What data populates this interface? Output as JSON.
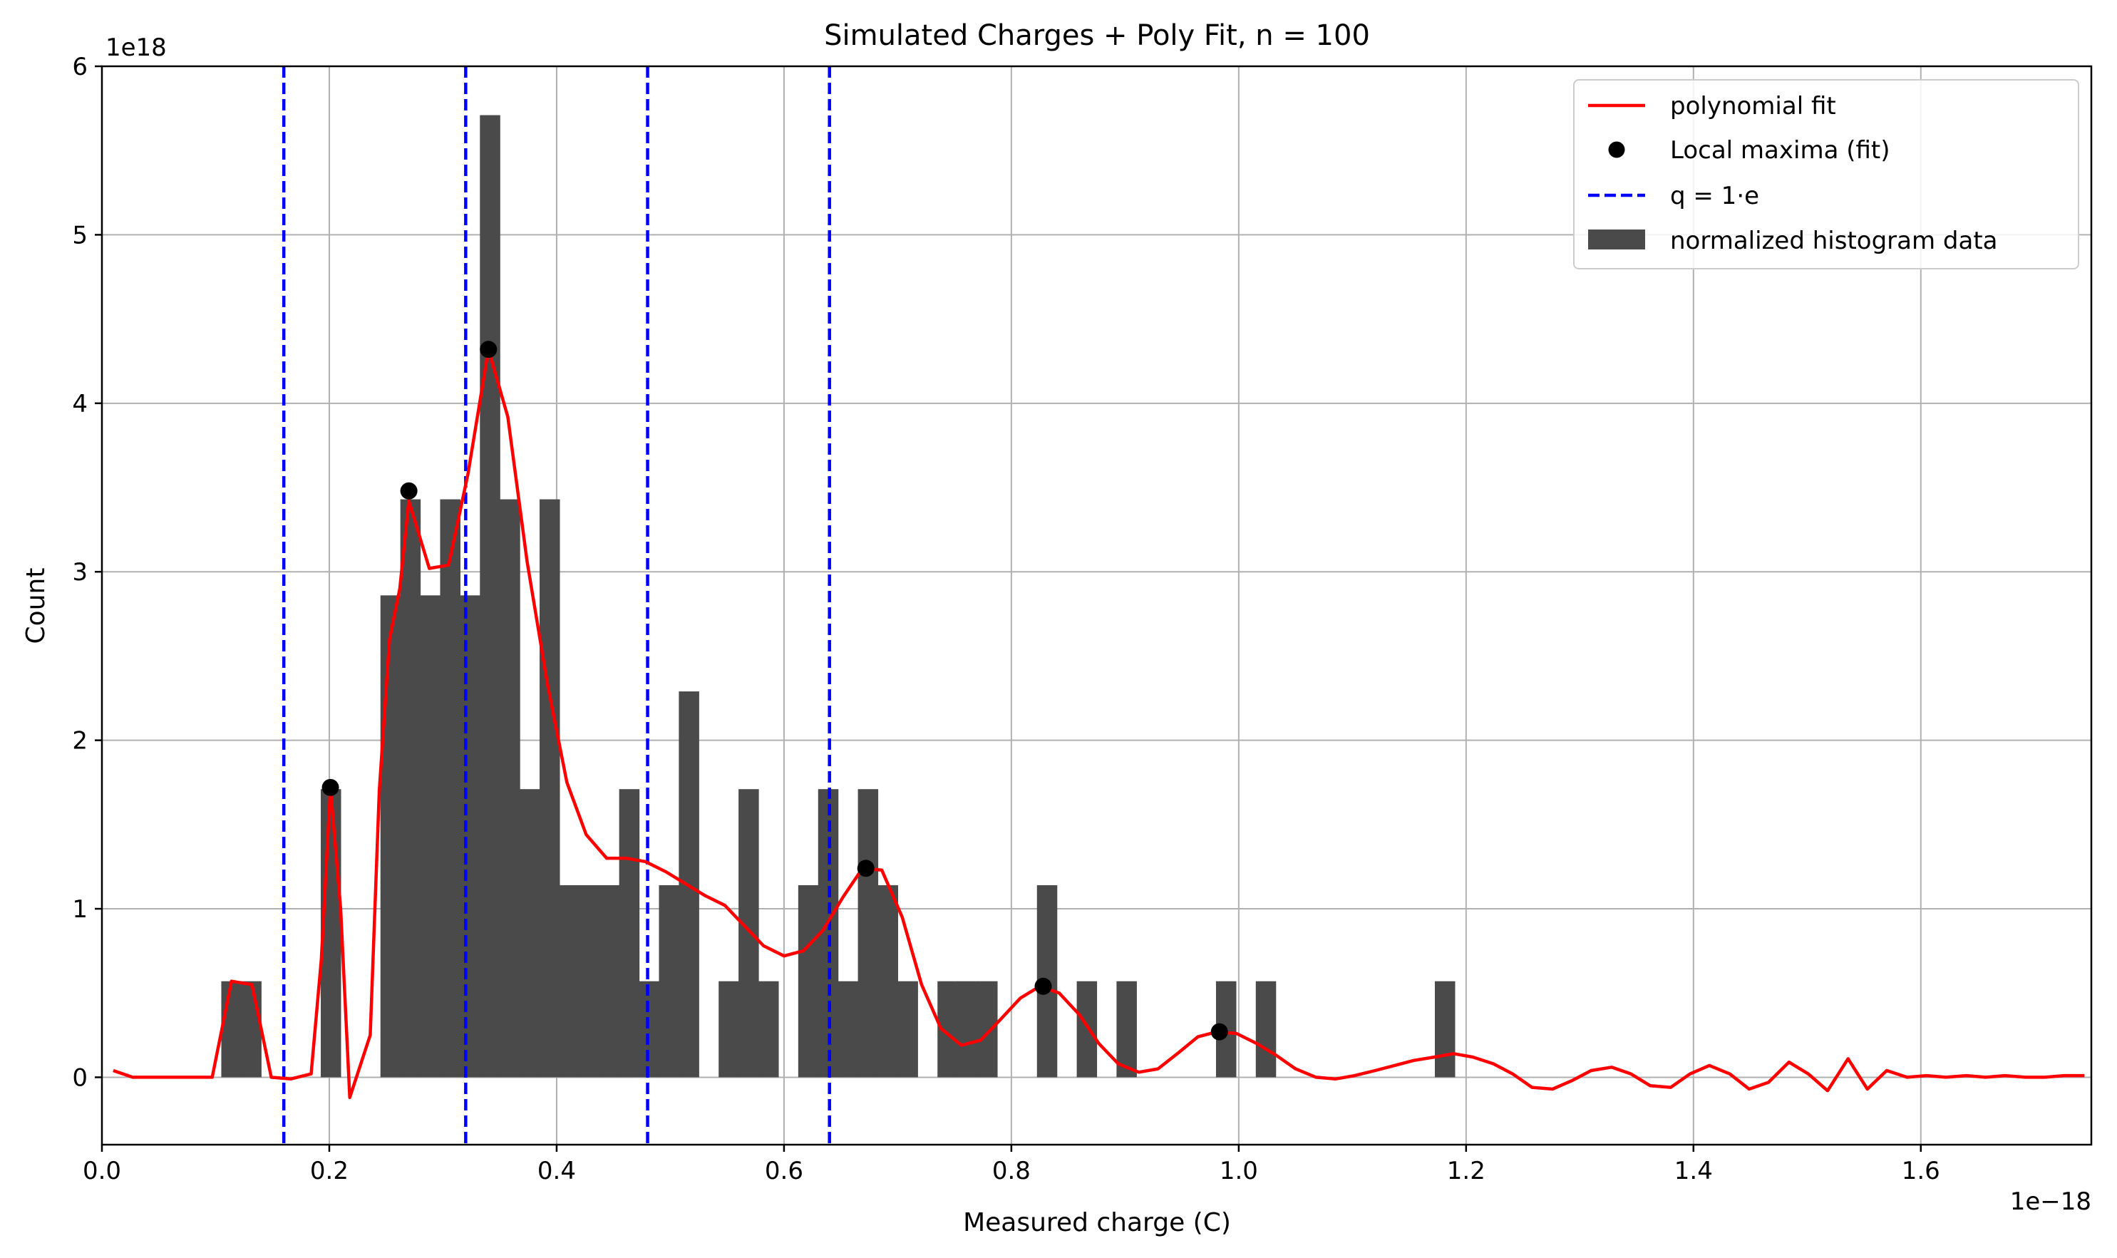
{
  "chart_data": {
    "type": "bar",
    "title": "Simulated Charges + Poly Fit, n = 100",
    "xlabel": "Measured charge (C)",
    "ylabel": "Count",
    "x_offset_text": "1e−18",
    "y_offset_text": "1e18",
    "xlim": [
      0.0,
      1.75
    ],
    "ylim": [
      -0.4,
      6.0
    ],
    "x_ticks": [
      0.0,
      0.2,
      0.4,
      0.6,
      0.8,
      1.0,
      1.2,
      1.4,
      1.6
    ],
    "x_tick_labels": [
      "0.0",
      "0.2",
      "0.4",
      "0.6",
      "0.8",
      "1.0",
      "1.2",
      "1.4",
      "1.6"
    ],
    "y_ticks": [
      0,
      1,
      2,
      3,
      4,
      5,
      6
    ],
    "y_tick_labels": [
      "0",
      "1",
      "2",
      "3",
      "4",
      "5",
      "6"
    ],
    "grid": true,
    "legend_position": "top-right",
    "legend": [
      "polynomial fit",
      "Local maxima (fit)",
      "q = 1·e",
      "normalized histogram data"
    ],
    "colors": {
      "histogram": "#4a4a4a",
      "fit": "#ff0000",
      "maxima": "#000000",
      "reference": "#0000ff"
    },
    "histogram": {
      "name": "normalized histogram data",
      "bin_width": 0.0175,
      "bins": [
        {
          "x": 0.105,
          "y": 0.57
        },
        {
          "x": 0.1225,
          "y": 0.57
        },
        {
          "x": 0.1925,
          "y": 1.71
        },
        {
          "x": 0.245,
          "y": 2.86
        },
        {
          "x": 0.2625,
          "y": 3.43
        },
        {
          "x": 0.28,
          "y": 2.86
        },
        {
          "x": 0.2975,
          "y": 3.43
        },
        {
          "x": 0.315,
          "y": 2.86
        },
        {
          "x": 0.3325,
          "y": 5.71
        },
        {
          "x": 0.35,
          "y": 3.43
        },
        {
          "x": 0.3675,
          "y": 1.71
        },
        {
          "x": 0.385,
          "y": 3.43
        },
        {
          "x": 0.4025,
          "y": 1.14
        },
        {
          "x": 0.42,
          "y": 1.14
        },
        {
          "x": 0.4375,
          "y": 1.14
        },
        {
          "x": 0.455,
          "y": 1.71
        },
        {
          "x": 0.4725,
          "y": 0.57
        },
        {
          "x": 0.49,
          "y": 1.14
        },
        {
          "x": 0.5075,
          "y": 2.29
        },
        {
          "x": 0.5425,
          "y": 0.57
        },
        {
          "x": 0.56,
          "y": 1.71
        },
        {
          "x": 0.5775,
          "y": 0.57
        },
        {
          "x": 0.6125,
          "y": 1.14
        },
        {
          "x": 0.63,
          "y": 1.71
        },
        {
          "x": 0.6475,
          "y": 0.57
        },
        {
          "x": 0.665,
          "y": 1.71
        },
        {
          "x": 0.6825,
          "y": 1.14
        },
        {
          "x": 0.7,
          "y": 0.57
        },
        {
          "x": 0.735,
          "y": 0.57
        },
        {
          "x": 0.7525,
          "y": 0.57
        },
        {
          "x": 0.77,
          "y": 0.57
        },
        {
          "x": 0.8225,
          "y": 1.14
        },
        {
          "x": 0.8575,
          "y": 0.57
        },
        {
          "x": 0.8925,
          "y": 0.57
        },
        {
          "x": 0.98,
          "y": 0.57
        },
        {
          "x": 1.015,
          "y": 0.57
        },
        {
          "x": 1.1725,
          "y": 0.57
        }
      ]
    },
    "fit": {
      "name": "polynomial fit",
      "x": [
        0.01,
        0.027,
        0.045,
        0.062,
        0.08,
        0.097,
        0.114,
        0.132,
        0.149,
        0.166,
        0.184,
        0.193,
        0.201,
        0.21,
        0.218,
        0.236,
        0.244,
        0.253,
        0.262,
        0.27,
        0.288,
        0.305,
        0.322,
        0.34,
        0.357,
        0.374,
        0.392,
        0.409,
        0.426,
        0.444,
        0.461,
        0.478,
        0.496,
        0.513,
        0.53,
        0.548,
        0.565,
        0.582,
        0.6,
        0.617,
        0.634,
        0.652,
        0.669,
        0.686,
        0.704,
        0.721,
        0.738,
        0.756,
        0.773,
        0.79,
        0.808,
        0.825,
        0.842,
        0.86,
        0.877,
        0.894,
        0.912,
        0.929,
        0.946,
        0.964,
        0.981,
        0.998,
        1.016,
        1.033,
        1.05,
        1.068,
        1.085,
        1.102,
        1.12,
        1.137,
        1.154,
        1.172,
        1.189,
        1.206,
        1.224,
        1.241,
        1.258,
        1.276,
        1.293,
        1.31,
        1.328,
        1.345,
        1.362,
        1.38,
        1.397,
        1.414,
        1.432,
        1.449,
        1.466,
        1.484,
        1.501,
        1.518,
        1.536,
        1.553,
        1.57,
        1.588,
        1.605,
        1.622,
        1.64,
        1.657,
        1.674,
        1.692,
        1.709,
        1.726,
        1.744
      ],
      "y": [
        0.04,
        0.0,
        0.0,
        0.0,
        0.0,
        0.0,
        0.57,
        0.55,
        0.0,
        -0.01,
        0.02,
        0.7,
        1.72,
        1.0,
        -0.12,
        0.25,
        1.7,
        2.6,
        2.9,
        3.42,
        3.02,
        3.04,
        3.58,
        4.32,
        3.92,
        3.06,
        2.33,
        1.75,
        1.44,
        1.3,
        1.3,
        1.28,
        1.22,
        1.15,
        1.08,
        1.02,
        0.9,
        0.78,
        0.72,
        0.75,
        0.87,
        1.07,
        1.24,
        1.23,
        0.95,
        0.55,
        0.29,
        0.19,
        0.22,
        0.34,
        0.47,
        0.54,
        0.5,
        0.37,
        0.2,
        0.08,
        0.03,
        0.05,
        0.14,
        0.24,
        0.27,
        0.26,
        0.2,
        0.13,
        0.05,
        0.0,
        -0.01,
        0.01,
        0.04,
        0.07,
        0.1,
        0.12,
        0.14,
        0.12,
        0.08,
        0.02,
        -0.06,
        -0.07,
        -0.02,
        0.04,
        0.06,
        0.02,
        -0.05,
        -0.06,
        0.02,
        0.07,
        0.02,
        -0.07,
        -0.03,
        0.09,
        0.02,
        -0.08,
        0.11,
        -0.07,
        0.04,
        0.0,
        0.01,
        0.0,
        0.01,
        0.0,
        0.01,
        0.0,
        0.0,
        0.01,
        0.01
      ]
    },
    "maxima": {
      "name": "Local maxima (fit)",
      "points": [
        {
          "x": 0.201,
          "y": 1.72
        },
        {
          "x": 0.27,
          "y": 3.48
        },
        {
          "x": 0.34,
          "y": 4.32
        },
        {
          "x": 0.672,
          "y": 1.24
        },
        {
          "x": 0.828,
          "y": 0.54
        },
        {
          "x": 0.983,
          "y": 0.27
        }
      ]
    },
    "reference_lines": {
      "name": "q = 1·e",
      "x": [
        0.16,
        0.32,
        0.48,
        0.64
      ]
    }
  }
}
